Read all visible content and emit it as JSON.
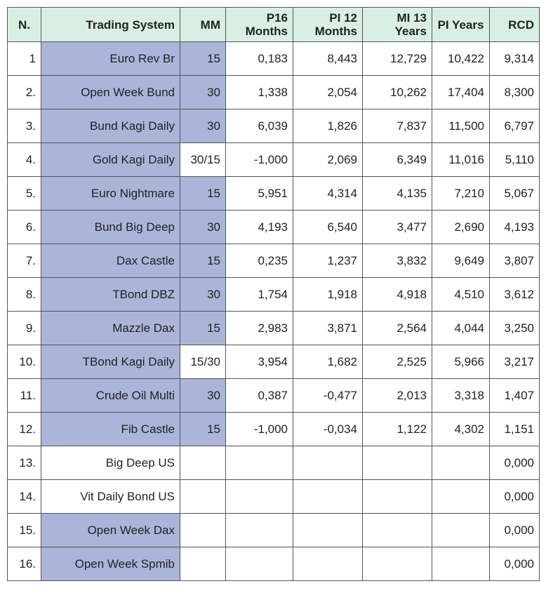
{
  "colors": {
    "header_bg": "#d9efe3",
    "highlight_bg": "#aab5d9",
    "border": "#555555"
  },
  "headers": {
    "n": "N.",
    "system": "Trading System",
    "mm": "MM",
    "p16_line1": "P16",
    "p16_line2": "Months",
    "pi12_line1": "PI 12",
    "pi12_line2": "Months",
    "mi13_line1": "MI 13",
    "mi13_line2": "Years",
    "pi_years": "PI Years",
    "rcd": "RCD"
  },
  "rows": [
    {
      "n": "1",
      "system": "Euro Rev Br",
      "mm": "15",
      "p16": "0,183",
      "pi12": "8,443",
      "mi13": "12,729",
      "pi_years": "10,422",
      "rcd": "9,314",
      "hl_system": true,
      "hl_mm": true
    },
    {
      "n": "2.",
      "system": "Open Week Bund",
      "mm": "30",
      "p16": "1,338",
      "pi12": "2,054",
      "mi13": "10,262",
      "pi_years": "17,404",
      "rcd": "8,300",
      "hl_system": true,
      "hl_mm": true
    },
    {
      "n": "3.",
      "system": "Bund Kagi Daily",
      "mm": "30",
      "p16": "6,039",
      "pi12": "1,826",
      "mi13": "7,837",
      "pi_years": "11,500",
      "rcd": "6,797",
      "hl_system": true,
      "hl_mm": true
    },
    {
      "n": "4.",
      "system": "Gold Kagi Daily",
      "mm": "30/15",
      "p16": "-1,000",
      "pi12": "2,069",
      "mi13": "6,349",
      "pi_years": "11,016",
      "rcd": "5,110",
      "hl_system": true,
      "hl_mm": false
    },
    {
      "n": "5.",
      "system": "Euro Nightmare",
      "mm": "15",
      "p16": "5,951",
      "pi12": "4,314",
      "mi13": "4,135",
      "pi_years": "7,210",
      "rcd": "5,067",
      "hl_system": true,
      "hl_mm": true
    },
    {
      "n": "6.",
      "system": "Bund Big Deep",
      "mm": "30",
      "p16": "4,193",
      "pi12": "6,540",
      "mi13": "3,477",
      "pi_years": "2,690",
      "rcd": "4,193",
      "hl_system": true,
      "hl_mm": true
    },
    {
      "n": "7.",
      "system": "Dax Castle",
      "mm": "15",
      "p16": "0,235",
      "pi12": "1,237",
      "mi13": "3,832",
      "pi_years": "9,649",
      "rcd": "3,807",
      "hl_system": true,
      "hl_mm": true
    },
    {
      "n": "8.",
      "system": "TBond DBZ",
      "mm": "30",
      "p16": "1,754",
      "pi12": "1,918",
      "mi13": "4,918",
      "pi_years": "4,510",
      "rcd": "3,612",
      "hl_system": true,
      "hl_mm": true
    },
    {
      "n": "9.",
      "system": "Mazzle Dax",
      "mm": "15",
      "p16": "2,983",
      "pi12": "3,871",
      "mi13": "2,564",
      "pi_years": "4,044",
      "rcd": "3,250",
      "hl_system": true,
      "hl_mm": true
    },
    {
      "n": "10.",
      "system": "TBond Kagi Daily",
      "mm": "15/30",
      "p16": "3,954",
      "pi12": "1,682",
      "mi13": "2,525",
      "pi_years": "5,966",
      "rcd": "3,217",
      "hl_system": true,
      "hl_mm": false
    },
    {
      "n": "11.",
      "system": "Crude Oil Multi",
      "mm": "30",
      "p16": "0,387",
      "pi12": "-0,477",
      "mi13": "2,013",
      "pi_years": "3,318",
      "rcd": "1,407",
      "hl_system": true,
      "hl_mm": true
    },
    {
      "n": "12.",
      "system": "Fib Castle",
      "mm": "15",
      "p16": "-1,000",
      "pi12": "-0,034",
      "mi13": "1,122",
      "pi_years": "4,302",
      "rcd": "1,151",
      "hl_system": true,
      "hl_mm": true
    },
    {
      "n": "13.",
      "system": "Big Deep US",
      "mm": "",
      "p16": "",
      "pi12": "",
      "mi13": "",
      "pi_years": "",
      "rcd": "0,000",
      "hl_system": false,
      "hl_mm": false
    },
    {
      "n": "14.",
      "system": "Vit Daily Bond US",
      "mm": "",
      "p16": "",
      "pi12": "",
      "mi13": "",
      "pi_years": "",
      "rcd": "0,000",
      "hl_system": false,
      "hl_mm": false
    },
    {
      "n": "15.",
      "system": "Open Week Dax",
      "mm": "",
      "p16": "",
      "pi12": "",
      "mi13": "",
      "pi_years": "",
      "rcd": "0,000",
      "hl_system": true,
      "hl_mm": false
    },
    {
      "n": "16.",
      "system": "Open Week Spmib",
      "mm": "",
      "p16": "",
      "pi12": "",
      "mi13": "",
      "pi_years": "",
      "rcd": "0,000",
      "hl_system": true,
      "hl_mm": false
    }
  ]
}
